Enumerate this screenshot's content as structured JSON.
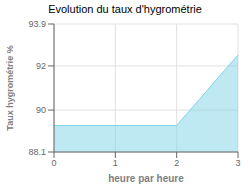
{
  "chart_data": {
    "type": "area",
    "title": "Evolution du taux d'hygrométrie",
    "xlabel": "heure par heure",
    "ylabel": "Taux hygrométrie %",
    "x": [
      0,
      2,
      3
    ],
    "values": [
      89.3,
      89.3,
      92.5
    ],
    "xlim": [
      0,
      3
    ],
    "ylim": [
      88.1,
      93.9
    ],
    "xticks": [
      0,
      1,
      2,
      3
    ],
    "yticks": [
      88.1,
      90.0,
      92.0,
      93.9
    ],
    "color": "#7dd4e8",
    "grid": true
  }
}
